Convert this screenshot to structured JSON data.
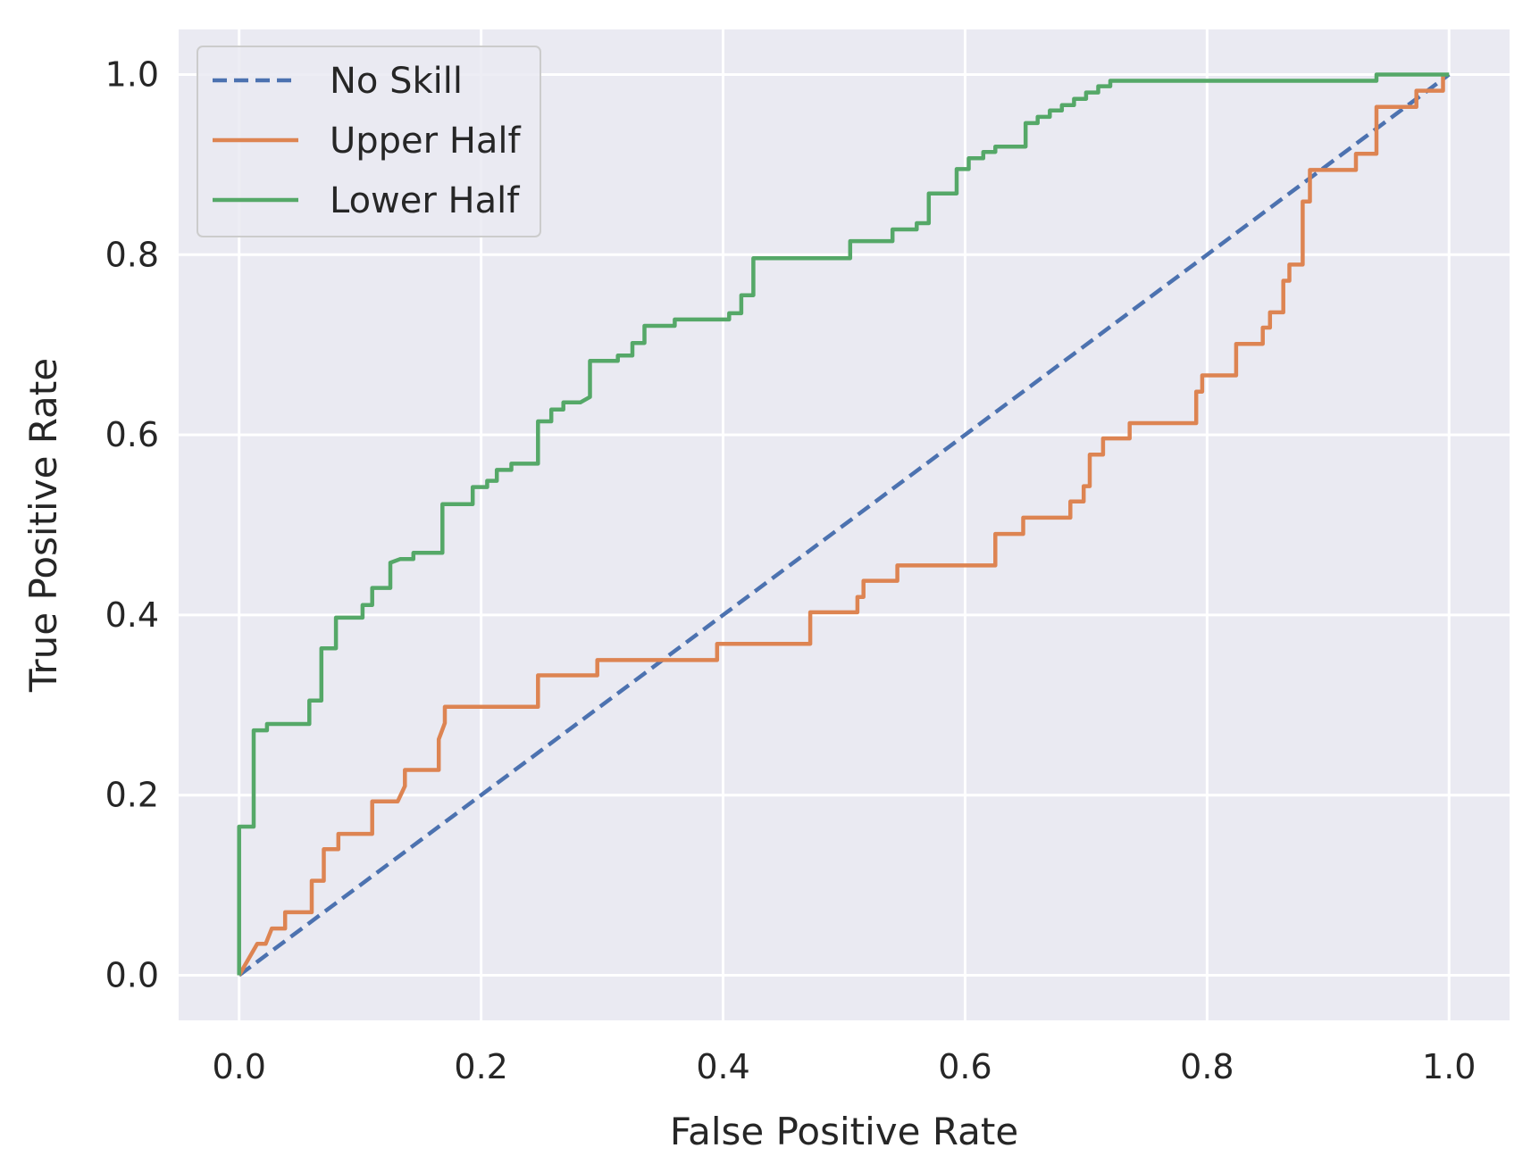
{
  "chart_data": {
    "type": "line",
    "title": "",
    "xlabel": "False Positive Rate",
    "ylabel": "True Positive Rate",
    "xlim": [
      -0.05,
      1.05
    ],
    "ylim": [
      -0.05,
      1.05
    ],
    "xticks": [
      "0.0",
      "0.2",
      "0.4",
      "0.6",
      "0.8",
      "1.0"
    ],
    "yticks": [
      "0.0",
      "0.2",
      "0.4",
      "0.6",
      "0.8",
      "1.0"
    ],
    "grid": true,
    "legend_position": "upper left",
    "background": "#eaeaf2",
    "series": [
      {
        "name": "No Skill",
        "color": "#4c72b0",
        "style": "dashed",
        "points": [
          [
            0,
            0
          ],
          [
            1,
            1
          ]
        ]
      },
      {
        "name": "Upper Half",
        "color": "#dd8452",
        "style": "solid",
        "points": [
          [
            0,
            0
          ],
          [
            0.015,
            0.035
          ],
          [
            0.022,
            0.035
          ],
          [
            0.027,
            0.052
          ],
          [
            0.038,
            0.052
          ],
          [
            0.038,
            0.07
          ],
          [
            0.06,
            0.07
          ],
          [
            0.06,
            0.105
          ],
          [
            0.07,
            0.105
          ],
          [
            0.07,
            0.14
          ],
          [
            0.082,
            0.14
          ],
          [
            0.082,
            0.157
          ],
          [
            0.11,
            0.157
          ],
          [
            0.11,
            0.193
          ],
          [
            0.131,
            0.193
          ],
          [
            0.137,
            0.21
          ],
          [
            0.137,
            0.228
          ],
          [
            0.165,
            0.228
          ],
          [
            0.165,
            0.262
          ],
          [
            0.17,
            0.28
          ],
          [
            0.17,
            0.298
          ],
          [
            0.247,
            0.298
          ],
          [
            0.247,
            0.333
          ],
          [
            0.296,
            0.333
          ],
          [
            0.296,
            0.35
          ],
          [
            0.395,
            0.35
          ],
          [
            0.395,
            0.368
          ],
          [
            0.472,
            0.368
          ],
          [
            0.472,
            0.403
          ],
          [
            0.511,
            0.403
          ],
          [
            0.511,
            0.42
          ],
          [
            0.516,
            0.42
          ],
          [
            0.516,
            0.438
          ],
          [
            0.544,
            0.438
          ],
          [
            0.544,
            0.455
          ],
          [
            0.625,
            0.455
          ],
          [
            0.625,
            0.49
          ],
          [
            0.648,
            0.49
          ],
          [
            0.648,
            0.508
          ],
          [
            0.687,
            0.508
          ],
          [
            0.687,
            0.526
          ],
          [
            0.698,
            0.526
          ],
          [
            0.698,
            0.543
          ],
          [
            0.703,
            0.543
          ],
          [
            0.703,
            0.578
          ],
          [
            0.714,
            0.578
          ],
          [
            0.714,
            0.596
          ],
          [
            0.736,
            0.596
          ],
          [
            0.736,
            0.613
          ],
          [
            0.791,
            0.613
          ],
          [
            0.791,
            0.648
          ],
          [
            0.796,
            0.648
          ],
          [
            0.796,
            0.666
          ],
          [
            0.824,
            0.666
          ],
          [
            0.824,
            0.701
          ],
          [
            0.846,
            0.701
          ],
          [
            0.846,
            0.719
          ],
          [
            0.852,
            0.719
          ],
          [
            0.852,
            0.736
          ],
          [
            0.863,
            0.736
          ],
          [
            0.863,
            0.771
          ],
          [
            0.868,
            0.771
          ],
          [
            0.868,
            0.789
          ],
          [
            0.879,
            0.789
          ],
          [
            0.879,
            0.859
          ],
          [
            0.885,
            0.859
          ],
          [
            0.885,
            0.894
          ],
          [
            0.923,
            0.894
          ],
          [
            0.923,
            0.912
          ],
          [
            0.94,
            0.912
          ],
          [
            0.94,
            0.964
          ],
          [
            0.973,
            0.964
          ],
          [
            0.973,
            0.982
          ],
          [
            0.995,
            0.982
          ],
          [
            0.995,
            1.0
          ]
        ]
      },
      {
        "name": "Lower Half",
        "color": "#55a868",
        "style": "solid",
        "points": [
          [
            0,
            0
          ],
          [
            0,
            0.165
          ],
          [
            0.012,
            0.165
          ],
          [
            0.012,
            0.272
          ],
          [
            0.023,
            0.272
          ],
          [
            0.023,
            0.279
          ],
          [
            0.058,
            0.279
          ],
          [
            0.058,
            0.305
          ],
          [
            0.068,
            0.305
          ],
          [
            0.068,
            0.312
          ],
          [
            0.068,
            0.363
          ],
          [
            0.08,
            0.363
          ],
          [
            0.08,
            0.397
          ],
          [
            0.102,
            0.397
          ],
          [
            0.102,
            0.411
          ],
          [
            0.11,
            0.411
          ],
          [
            0.11,
            0.43
          ],
          [
            0.125,
            0.43
          ],
          [
            0.125,
            0.458
          ],
          [
            0.133,
            0.462
          ],
          [
            0.144,
            0.462
          ],
          [
            0.144,
            0.469
          ],
          [
            0.168,
            0.469
          ],
          [
            0.168,
            0.523
          ],
          [
            0.193,
            0.523
          ],
          [
            0.193,
            0.542
          ],
          [
            0.205,
            0.542
          ],
          [
            0.205,
            0.549
          ],
          [
            0.213,
            0.549
          ],
          [
            0.213,
            0.561
          ],
          [
            0.225,
            0.561
          ],
          [
            0.225,
            0.568
          ],
          [
            0.247,
            0.568
          ],
          [
            0.247,
            0.615
          ],
          [
            0.258,
            0.615
          ],
          [
            0.258,
            0.628
          ],
          [
            0.268,
            0.628
          ],
          [
            0.268,
            0.636
          ],
          [
            0.282,
            0.636
          ],
          [
            0.29,
            0.642
          ],
          [
            0.29,
            0.682
          ],
          [
            0.313,
            0.682
          ],
          [
            0.313,
            0.688
          ],
          [
            0.325,
            0.688
          ],
          [
            0.325,
            0.702
          ],
          [
            0.335,
            0.702
          ],
          [
            0.335,
            0.721
          ],
          [
            0.36,
            0.721
          ],
          [
            0.36,
            0.728
          ],
          [
            0.405,
            0.728
          ],
          [
            0.405,
            0.735
          ],
          [
            0.415,
            0.735
          ],
          [
            0.415,
            0.755
          ],
          [
            0.425,
            0.755
          ],
          [
            0.425,
            0.796
          ],
          [
            0.505,
            0.796
          ],
          [
            0.505,
            0.815
          ],
          [
            0.54,
            0.815
          ],
          [
            0.54,
            0.828
          ],
          [
            0.56,
            0.828
          ],
          [
            0.56,
            0.835
          ],
          [
            0.57,
            0.835
          ],
          [
            0.57,
            0.868
          ],
          [
            0.593,
            0.868
          ],
          [
            0.593,
            0.895
          ],
          [
            0.603,
            0.895
          ],
          [
            0.603,
            0.907
          ],
          [
            0.615,
            0.907
          ],
          [
            0.615,
            0.914
          ],
          [
            0.625,
            0.914
          ],
          [
            0.625,
            0.92
          ],
          [
            0.65,
            0.92
          ],
          [
            0.65,
            0.946
          ],
          [
            0.66,
            0.946
          ],
          [
            0.66,
            0.953
          ],
          [
            0.67,
            0.953
          ],
          [
            0.67,
            0.96
          ],
          [
            0.68,
            0.96
          ],
          [
            0.68,
            0.966
          ],
          [
            0.69,
            0.966
          ],
          [
            0.69,
            0.973
          ],
          [
            0.7,
            0.973
          ],
          [
            0.7,
            0.98
          ],
          [
            0.71,
            0.98
          ],
          [
            0.71,
            0.987
          ],
          [
            0.72,
            0.987
          ],
          [
            0.72,
            0.993
          ],
          [
            0.94,
            0.993
          ],
          [
            0.94,
            1.0
          ],
          [
            1,
            1.0
          ]
        ]
      }
    ]
  }
}
